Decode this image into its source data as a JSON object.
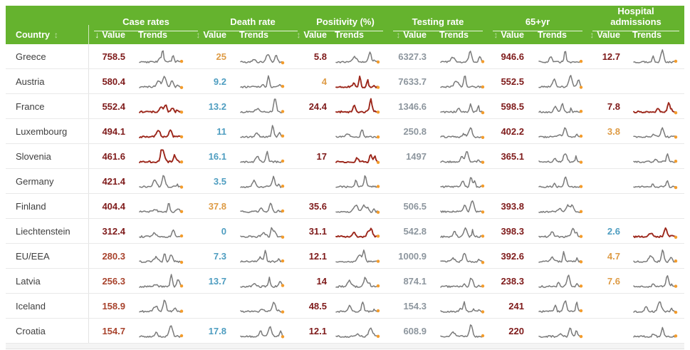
{
  "table": {
    "country_header": "Country",
    "value_label": "Value",
    "trends_label": "Trends",
    "icons": {
      "sort_both": "↕",
      "sort_desc": "↓"
    },
    "columns": [
      {
        "key": "case",
        "label": "Case rates"
      },
      {
        "key": "death",
        "label": "Death rate"
      },
      {
        "key": "pos",
        "label": "Positivity (%)"
      },
      {
        "key": "test",
        "label": "Testing rate"
      },
      {
        "key": "sixty",
        "label": "65+yr"
      },
      {
        "key": "hosp",
        "label": "Hospital admissions"
      }
    ]
  },
  "colors": {
    "header_green": "#65b32e",
    "value_maroon": "#7e1a1a",
    "value_red": "#a8432d",
    "value_orange": "#de9b45",
    "value_teal": "#4e9dc0",
    "value_gray": "#8d969e",
    "spark_gray": "#7a7a7a",
    "spark_red": "#9c271b",
    "spark_dot": "#f39c2c"
  },
  "rows": [
    {
      "country": "Greece",
      "cells": [
        {
          "v": "758.5",
          "c": "maroon",
          "t": "gray"
        },
        {
          "v": "25",
          "c": "orange",
          "t": "gray"
        },
        {
          "v": "5.8",
          "c": "maroon",
          "t": "gray"
        },
        {
          "v": "6327.3",
          "c": "gray",
          "t": "gray"
        },
        {
          "v": "946.6",
          "c": "maroon",
          "t": "gray"
        },
        {
          "v": "12.7",
          "c": "maroon",
          "t": "gray"
        }
      ]
    },
    {
      "country": "Austria",
      "cells": [
        {
          "v": "580.4",
          "c": "maroon",
          "t": "gray"
        },
        {
          "v": "9.2",
          "c": "teal",
          "t": "gray"
        },
        {
          "v": "4",
          "c": "orange",
          "t": "red"
        },
        {
          "v": "7633.7",
          "c": "gray",
          "t": "gray"
        },
        {
          "v": "552.5",
          "c": "maroon",
          "t": "gray"
        },
        {
          "v": null,
          "c": null,
          "t": null
        }
      ]
    },
    {
      "country": "France",
      "cells": [
        {
          "v": "552.4",
          "c": "maroon",
          "t": "red"
        },
        {
          "v": "13.2",
          "c": "teal",
          "t": "gray"
        },
        {
          "v": "24.4",
          "c": "maroon",
          "t": "red"
        },
        {
          "v": "1346.6",
          "c": "gray",
          "t": "gray"
        },
        {
          "v": "598.5",
          "c": "maroon",
          "t": "gray"
        },
        {
          "v": "7.8",
          "c": "maroon",
          "t": "red"
        }
      ]
    },
    {
      "country": "Luxembourg",
      "cells": [
        {
          "v": "494.1",
          "c": "maroon",
          "t": "red"
        },
        {
          "v": "11",
          "c": "teal",
          "t": "gray"
        },
        {
          "v": null,
          "c": null,
          "t": "gray"
        },
        {
          "v": "250.8",
          "c": "gray",
          "t": "gray"
        },
        {
          "v": "402.2",
          "c": "maroon",
          "t": "gray"
        },
        {
          "v": "3.8",
          "c": "orange",
          "t": "gray"
        }
      ]
    },
    {
      "country": "Slovenia",
      "cells": [
        {
          "v": "461.6",
          "c": "maroon",
          "t": "red"
        },
        {
          "v": "16.1",
          "c": "teal",
          "t": "gray"
        },
        {
          "v": "17",
          "c": "maroon",
          "t": "red"
        },
        {
          "v": "1497",
          "c": "gray",
          "t": "gray"
        },
        {
          "v": "365.1",
          "c": "maroon",
          "t": "gray"
        },
        {
          "v": null,
          "c": null,
          "t": "gray"
        }
      ]
    },
    {
      "country": "Germany",
      "cells": [
        {
          "v": "421.4",
          "c": "maroon",
          "t": "gray"
        },
        {
          "v": "3.5",
          "c": "teal",
          "t": "gray"
        },
        {
          "v": null,
          "c": null,
          "t": "gray"
        },
        {
          "v": null,
          "c": null,
          "t": "gray"
        },
        {
          "v": null,
          "c": null,
          "t": "gray"
        },
        {
          "v": null,
          "c": null,
          "t": "gray"
        }
      ]
    },
    {
      "country": "Finland",
      "cells": [
        {
          "v": "404.4",
          "c": "maroon",
          "t": "gray"
        },
        {
          "v": "37.8",
          "c": "orange",
          "t": "gray"
        },
        {
          "v": "35.6",
          "c": "maroon",
          "t": "gray"
        },
        {
          "v": "506.5",
          "c": "gray",
          "t": "gray"
        },
        {
          "v": "393.8",
          "c": "maroon",
          "t": "gray"
        },
        {
          "v": null,
          "c": null,
          "t": null
        }
      ]
    },
    {
      "country": "Liechtenstein",
      "cells": [
        {
          "v": "312.4",
          "c": "maroon",
          "t": "gray"
        },
        {
          "v": "0",
          "c": "teal",
          "t": "gray"
        },
        {
          "v": "31.1",
          "c": "maroon",
          "t": "red"
        },
        {
          "v": "542.8",
          "c": "gray",
          "t": "gray"
        },
        {
          "v": "398.3",
          "c": "maroon",
          "t": "gray"
        },
        {
          "v": "2.6",
          "c": "teal",
          "t": "red"
        }
      ]
    },
    {
      "country": "EU/EEA",
      "cells": [
        {
          "v": "280.3",
          "c": "red",
          "t": "gray"
        },
        {
          "v": "7.3",
          "c": "teal",
          "t": "gray"
        },
        {
          "v": "12.1",
          "c": "maroon",
          "t": "gray"
        },
        {
          "v": "1000.9",
          "c": "gray",
          "t": "gray"
        },
        {
          "v": "392.6",
          "c": "maroon",
          "t": "gray"
        },
        {
          "v": "4.7",
          "c": "orange",
          "t": "gray"
        }
      ]
    },
    {
      "country": "Latvia",
      "cells": [
        {
          "v": "256.3",
          "c": "red",
          "t": "gray"
        },
        {
          "v": "13.7",
          "c": "teal",
          "t": "gray"
        },
        {
          "v": "14",
          "c": "maroon",
          "t": "gray"
        },
        {
          "v": "874.1",
          "c": "gray",
          "t": "gray"
        },
        {
          "v": "238.3",
          "c": "maroon",
          "t": "gray"
        },
        {
          "v": "7.6",
          "c": "orange",
          "t": "gray"
        }
      ]
    },
    {
      "country": "Iceland",
      "cells": [
        {
          "v": "158.9",
          "c": "red",
          "t": "gray"
        },
        {
          "v": null,
          "c": null,
          "t": "gray"
        },
        {
          "v": "48.5",
          "c": "maroon",
          "t": "gray"
        },
        {
          "v": "154.3",
          "c": "gray",
          "t": "gray"
        },
        {
          "v": "241",
          "c": "maroon",
          "t": "gray"
        },
        {
          "v": null,
          "c": null,
          "t": "gray"
        }
      ]
    },
    {
      "country": "Croatia",
      "cells": [
        {
          "v": "154.7",
          "c": "red",
          "t": "gray"
        },
        {
          "v": "17.8",
          "c": "teal",
          "t": "gray"
        },
        {
          "v": "12.1",
          "c": "maroon",
          "t": "gray"
        },
        {
          "v": "608.9",
          "c": "gray",
          "t": "gray"
        },
        {
          "v": "220",
          "c": "maroon",
          "t": "gray"
        },
        {
          "v": null,
          "c": null,
          "t": "gray"
        }
      ]
    }
  ]
}
